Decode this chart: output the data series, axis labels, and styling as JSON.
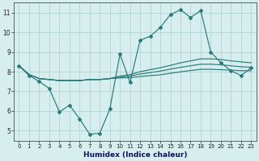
{
  "x": [
    0,
    1,
    2,
    3,
    4,
    5,
    6,
    7,
    8,
    9,
    10,
    11,
    12,
    13,
    14,
    15,
    16,
    17,
    18,
    19,
    20,
    21,
    22,
    23
  ],
  "line_jagged": [
    8.3,
    7.8,
    7.5,
    7.15,
    5.95,
    6.3,
    5.6,
    4.82,
    4.87,
    6.1,
    8.9,
    7.45,
    9.6,
    9.8,
    10.25,
    10.9,
    11.15,
    10.75,
    11.1,
    9.0,
    8.45,
    8.05,
    7.8,
    8.2
  ],
  "line_upper": [
    8.3,
    7.85,
    7.65,
    7.6,
    7.55,
    7.55,
    7.55,
    7.6,
    7.6,
    7.65,
    7.78,
    7.85,
    8.0,
    8.1,
    8.2,
    8.32,
    8.45,
    8.55,
    8.65,
    8.65,
    8.62,
    8.55,
    8.5,
    8.45
  ],
  "line_middle": [
    8.3,
    7.85,
    7.65,
    7.6,
    7.55,
    7.55,
    7.55,
    7.6,
    7.6,
    7.65,
    7.72,
    7.78,
    7.88,
    7.95,
    8.03,
    8.13,
    8.22,
    8.3,
    8.38,
    8.38,
    8.35,
    8.3,
    8.25,
    8.22
  ],
  "line_lower": [
    8.3,
    7.85,
    7.65,
    7.6,
    7.55,
    7.55,
    7.55,
    7.6,
    7.6,
    7.65,
    7.68,
    7.7,
    7.75,
    7.8,
    7.84,
    7.92,
    7.99,
    8.06,
    8.12,
    8.12,
    8.1,
    8.08,
    8.05,
    8.05
  ],
  "line_color": "#2a7a7a",
  "bg_color": "#d6eeee",
  "grid_color": "#b8d8d8",
  "xlabel": "Humidex (Indice chaleur)",
  "ylim": [
    4.5,
    11.5
  ],
  "xlim": [
    -0.5,
    23.5
  ],
  "yticks": [
    5,
    6,
    7,
    8,
    9,
    10,
    11
  ],
  "xticks": [
    0,
    1,
    2,
    3,
    4,
    5,
    6,
    7,
    8,
    9,
    10,
    11,
    12,
    13,
    14,
    15,
    16,
    17,
    18,
    19,
    20,
    21,
    22,
    23
  ],
  "tick_fontsize": 5.0,
  "xlabel_fontsize": 6.5
}
